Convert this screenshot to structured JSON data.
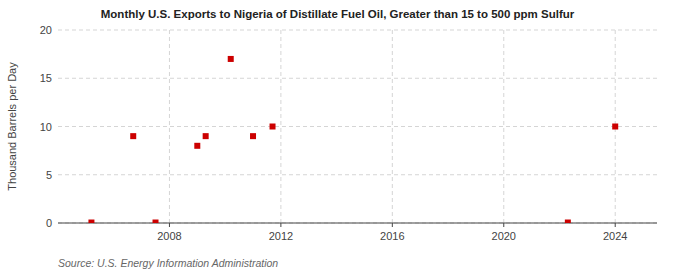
{
  "chart_data": {
    "type": "scatter",
    "title": "Monthly U.S. Exports to Nigeria of Distillate Fuel Oil, Greater than 15 to 500 ppm Sulfur",
    "ylabel": "Thousand Barrels per Day",
    "source": "Source: U.S. Energy Information Administration",
    "x": [
      2005.2,
      2006.7,
      2007.5,
      2009.0,
      2009.3,
      2010.2,
      2011.0,
      2011.7,
      2022.3,
      2024.0
    ],
    "values": [
      0.05,
      9.0,
      0.05,
      8.0,
      9.0,
      17.0,
      9.0,
      10.0,
      0.05,
      10.0
    ],
    "color": "#cc0000",
    "marker": "square",
    "xlim": [
      2004,
      2025.5
    ],
    "ylim": [
      0,
      20
    ],
    "xticks": [
      2008,
      2012,
      2016,
      2020,
      2024
    ],
    "yticks": [
      0,
      5,
      10,
      15,
      20
    ],
    "grid": true
  }
}
